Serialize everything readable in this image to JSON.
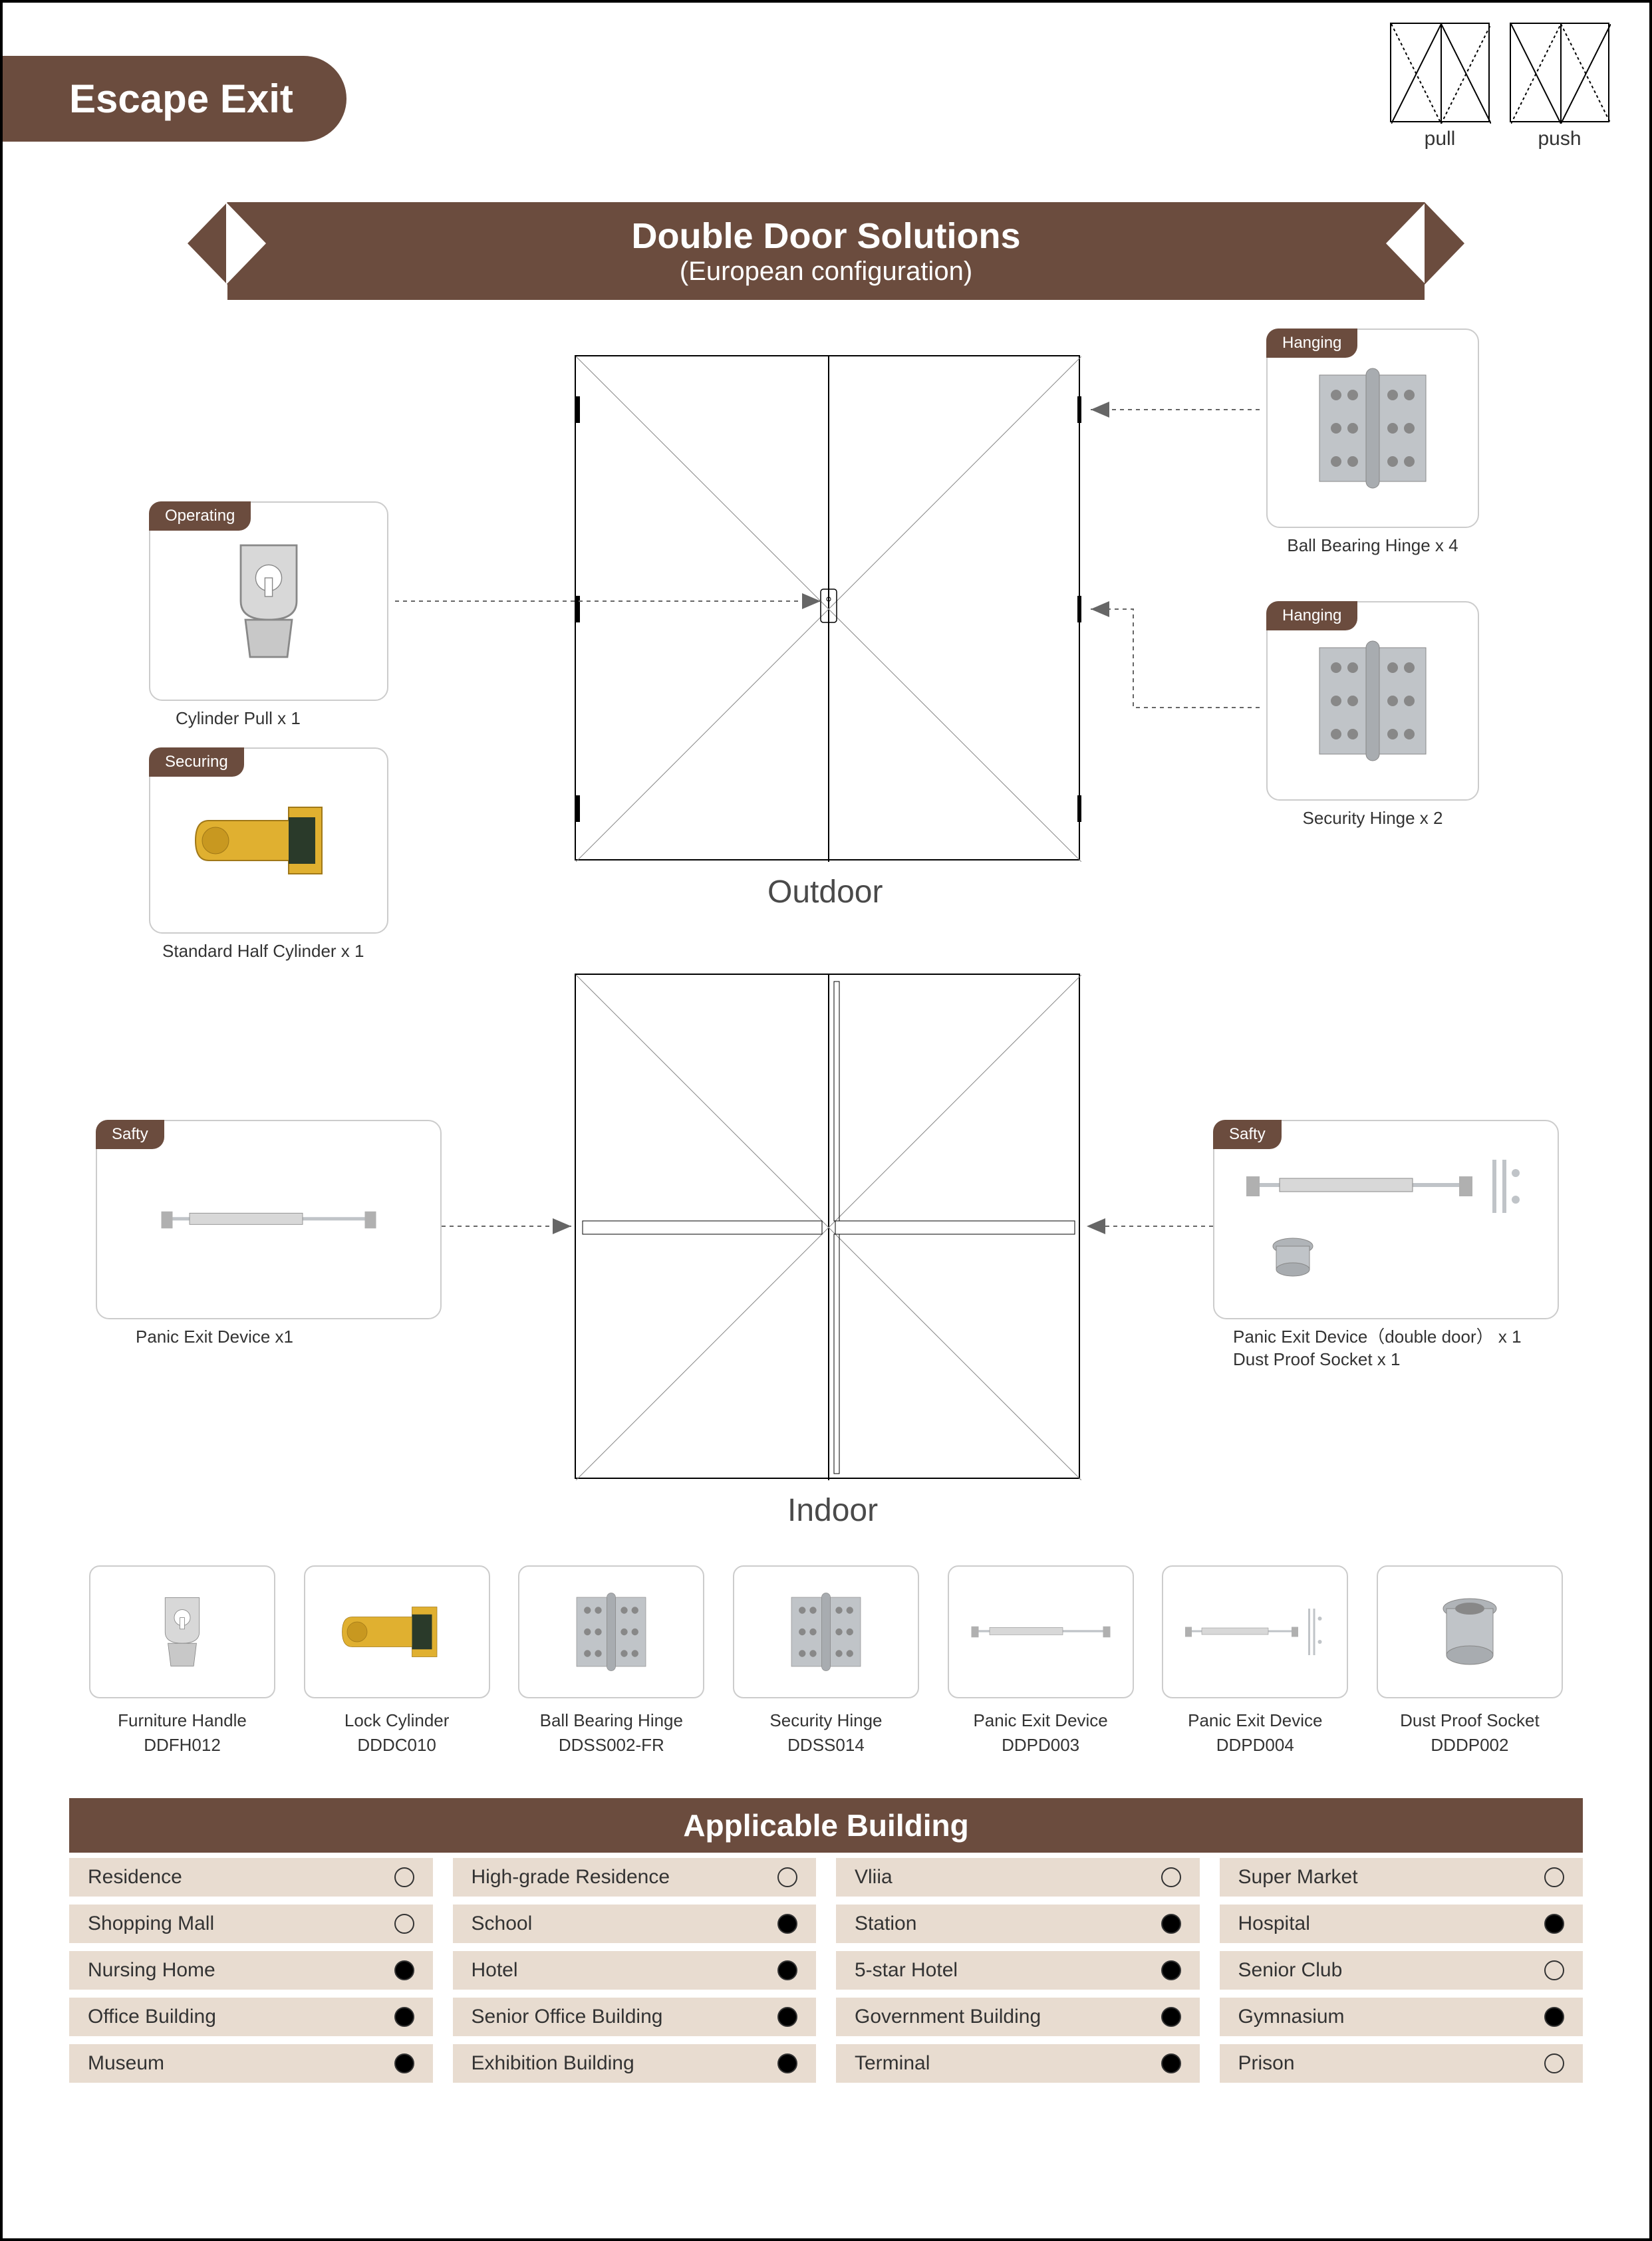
{
  "colors": {
    "brand": "#6b4c3e",
    "cell": "#e8dcd0",
    "border": "#cccccc",
    "steel": "#c0c4c8",
    "brass": "#e0b030"
  },
  "header": {
    "title": "Escape Exit",
    "icons": [
      {
        "label": "pull",
        "type": "pull"
      },
      {
        "label": "push",
        "type": "push"
      }
    ]
  },
  "ribbon": {
    "title": "Double Door Solutions",
    "subtitle": "(European configuration)"
  },
  "cards": {
    "operating": {
      "tag": "Operating",
      "label": "Cylinder Pull  x 1"
    },
    "securing": {
      "tag": "Securing",
      "label": "Standard Half Cylinder x 1"
    },
    "hanging1": {
      "tag": "Hanging",
      "label": "Ball Bearing Hinge x 4"
    },
    "hanging2": {
      "tag": "Hanging",
      "label": "Security Hinge x 2"
    },
    "safty_l": {
      "tag": "Safty",
      "label": "Panic Exit Device x1"
    },
    "safty_r": {
      "tag": "Safty",
      "label_l1": "Panic  Exit  Device（double  door） x  1",
      "label_l2": "Dust  Proof  Socket  x 1"
    }
  },
  "doors": {
    "outdoor": "Outdoor",
    "indoor": "Indoor"
  },
  "thumbs": [
    {
      "name": "Furniture Handle",
      "code": "DDFH012",
      "icon": "pull"
    },
    {
      "name": "Lock Cylinder",
      "code": "DDDC010",
      "icon": "cyl"
    },
    {
      "name": "Ball Bearing Hinge",
      "code": "DDSS002-FR",
      "icon": "hinge"
    },
    {
      "name": "Security Hinge",
      "code": "DDSS014",
      "icon": "hinge"
    },
    {
      "name": "Panic Exit Device",
      "code": "DDPD003",
      "icon": "panic"
    },
    {
      "name": "Panic Exit Device",
      "code": "DDPD004",
      "icon": "panic2"
    },
    {
      "name": "Dust Proof Socket",
      "code": "DDDP002",
      "icon": "socket"
    }
  ],
  "applicable": {
    "title": "Applicable Building",
    "rows": [
      [
        {
          "n": "Residence",
          "v": false
        },
        {
          "n": "High-grade Residence",
          "v": false
        },
        {
          "n": "Vliia",
          "v": false
        },
        {
          "n": "Super Market",
          "v": false
        }
      ],
      [
        {
          "n": "Shopping Mall",
          "v": false
        },
        {
          "n": "School",
          "v": true
        },
        {
          "n": "Station",
          "v": true
        },
        {
          "n": "Hospital",
          "v": true
        }
      ],
      [
        {
          "n": "Nursing Home",
          "v": true
        },
        {
          "n": "Hotel",
          "v": true
        },
        {
          "n": "5-star Hotel",
          "v": true
        },
        {
          "n": "Senior Club",
          "v": false
        }
      ],
      [
        {
          "n": "Office Building",
          "v": true
        },
        {
          "n": "Senior Office Building",
          "v": true
        },
        {
          "n": "Government Building",
          "v": true
        },
        {
          "n": "Gymnasium",
          "v": true
        }
      ],
      [
        {
          "n": "Museum",
          "v": true
        },
        {
          "n": "Exhibition Building",
          "v": true
        },
        {
          "n": "Terminal",
          "v": true
        },
        {
          "n": "Prison",
          "v": false
        }
      ]
    ]
  }
}
